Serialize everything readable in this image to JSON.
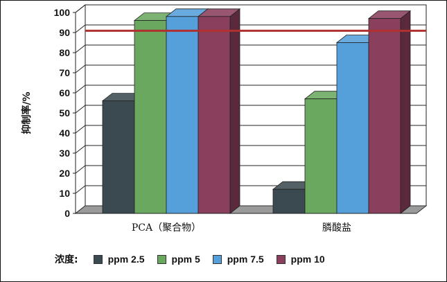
{
  "chart_data": {
    "type": "bar",
    "ylabel": "抑制率/%",
    "ylim": [
      0,
      100
    ],
    "yticks": [
      0,
      10,
      20,
      30,
      40,
      50,
      60,
      70,
      80,
      90,
      100
    ],
    "categories": [
      "PCA（聚合物）",
      "膦酸盐"
    ],
    "series": [
      {
        "name": "ppm 2.5",
        "color": "#3b4a50",
        "values": [
          56,
          12
        ]
      },
      {
        "name": "ppm 5",
        "color": "#6aa85f",
        "values": [
          96,
          57
        ]
      },
      {
        "name": "ppm 7.5",
        "color": "#55a0db",
        "values": [
          98,
          85
        ]
      },
      {
        "name": "ppm 10",
        "color": "#8a3f5c",
        "values": [
          98,
          97
        ]
      }
    ],
    "reference_line": {
      "value": 89,
      "color": "#b03030"
    },
    "legend_title": "浓度:",
    "legend_position": "bottom",
    "grid": true
  }
}
